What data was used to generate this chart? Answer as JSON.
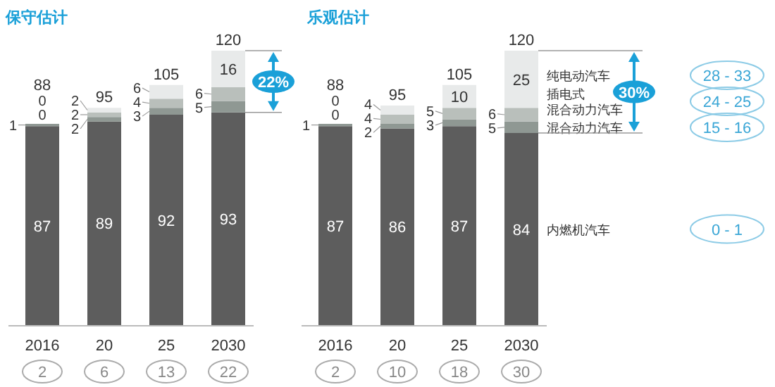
{
  "chart_data": [
    {
      "type": "bar",
      "stacked": true,
      "title": "保守估计",
      "categories": [
        "2016",
        "20",
        "25",
        "2030"
      ],
      "data_labels": true,
      "totals": [
        "88",
        "95",
        "105",
        "120"
      ],
      "series": [
        {
          "color": "#5d5d5d",
          "values": [
            87,
            89,
            92,
            93
          ]
        },
        {
          "color": "#8f9893",
          "values": [
            1,
            2,
            3,
            5
          ]
        },
        {
          "color": "#b9bfbb",
          "values": [
            0,
            2,
            4,
            6
          ]
        },
        {
          "color": "#e8eaea",
          "values": [
            0,
            2,
            6,
            16
          ]
        }
      ],
      "annotations": [
        "22%",
        "2",
        "6",
        "13",
        "22"
      ]
    },
    {
      "type": "bar",
      "stacked": true,
      "title": "乐观估计",
      "categories": [
        "2016",
        "20",
        "25",
        "2030"
      ],
      "data_labels": true,
      "totals": [
        "88",
        "95",
        "105",
        "120"
      ],
      "series": [
        {
          "name": "内燃机汽车",
          "color": "#5d5d5d",
          "values": [
            87,
            86,
            87,
            84
          ]
        },
        {
          "name": "混合动力汽车",
          "color": "#8f9893",
          "values": [
            1,
            2,
            3,
            5
          ]
        },
        {
          "name": "插电式混合动力汽车",
          "color": "#b9bfbb",
          "values": [
            0,
            4,
            5,
            6
          ]
        },
        {
          "name": "纯电动汽车",
          "color": "#e8eaea",
          "values": [
            0,
            4,
            10,
            25
          ]
        }
      ],
      "annotations": [
        "30%",
        "2",
        "10",
        "18",
        "30",
        "0 - 1",
        "15 - 16",
        "24 - 25",
        "28 - 33"
      ]
    }
  ]
}
